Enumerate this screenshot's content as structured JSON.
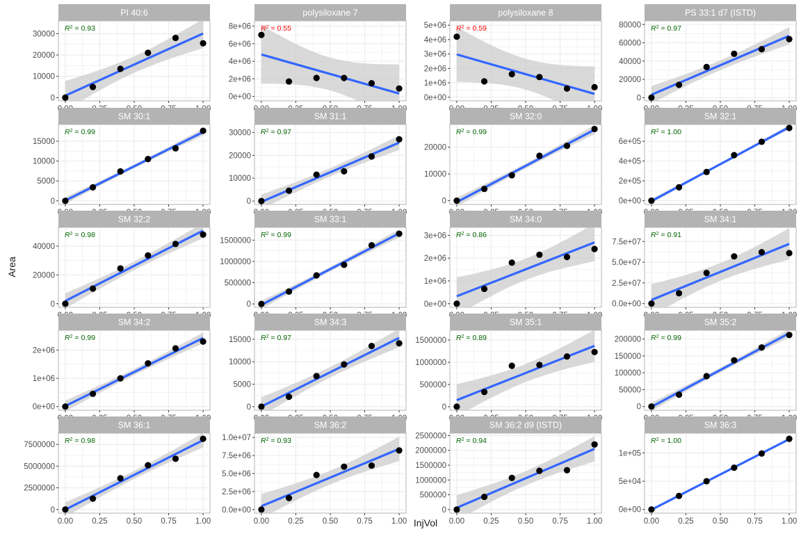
{
  "chart_data": {
    "type": "scatter",
    "layout": "facet_wrap",
    "facet_columns": 4,
    "xlabel": "InjVol",
    "ylabel": "Area",
    "x_ticks": [
      "0.00",
      "0.25",
      "0.50",
      "0.75",
      "1.00"
    ],
    "xlim": [
      -0.05,
      1.05
    ],
    "colors": {
      "strip_background": "#b3b3b3",
      "strip_text": "#ffffff",
      "grid": "#ebebeb",
      "panel_border": "#b3b3b3",
      "fit_line": "#3366ff",
      "confidence_band": "#cccccc",
      "points": "#000000",
      "r2_good": "#006400",
      "r2_bad": "#ff0000"
    },
    "grid": true,
    "annotation": "R² label per facet (green when acceptable, red when poor)",
    "panels": [
      {
        "title": "PI 40:6",
        "r2": "0.93",
        "r2_status": "good",
        "y_ticks": [
          {
            "v": 0,
            "t": "0"
          },
          {
            "v": 10000,
            "t": "10000"
          },
          {
            "v": 20000,
            "t": "20000"
          },
          {
            "v": 30000,
            "t": "30000"
          }
        ],
        "ylim": [
          -1500,
          36000
        ],
        "x": [
          0,
          0.2,
          0.4,
          0.6,
          0.8,
          1.0
        ],
        "y": [
          0,
          5000,
          13500,
          21000,
          28000,
          25500
        ]
      },
      {
        "title": "polysiloxane 7",
        "r2": "0.55",
        "r2_status": "bad",
        "y_ticks": [
          {
            "v": 0,
            "t": "0e+00"
          },
          {
            "v": 2000000,
            "t": "2e+06"
          },
          {
            "v": 4000000,
            "t": "4e+06"
          },
          {
            "v": 6000000,
            "t": "6e+06"
          },
          {
            "v": 8000000,
            "t": "8e+06"
          }
        ],
        "ylim": [
          -500000,
          8600000
        ],
        "x": [
          0,
          0.2,
          0.4,
          0.6,
          0.8,
          1.0
        ],
        "y": [
          7000000,
          1700000,
          2100000,
          2100000,
          1500000,
          900000
        ]
      },
      {
        "title": "polysiloxane 8",
        "r2": "0.59",
        "r2_status": "bad",
        "y_ticks": [
          {
            "v": 0,
            "t": "0e+00"
          },
          {
            "v": 1000000,
            "t": "1e+06"
          },
          {
            "v": 2000000,
            "t": "2e+06"
          },
          {
            "v": 3000000,
            "t": "3e+06"
          },
          {
            "v": 4000000,
            "t": "4e+06"
          },
          {
            "v": 5000000,
            "t": "5e+06"
          }
        ],
        "ylim": [
          -250000,
          5300000
        ],
        "x": [
          0,
          0.2,
          0.4,
          0.6,
          0.8,
          1.0
        ],
        "y": [
          4200000,
          1100000,
          1600000,
          1400000,
          600000,
          700000
        ]
      },
      {
        "title": "PS 33:1 d7 (ISTD)",
        "r2": "0.97",
        "r2_status": "good",
        "y_ticks": [
          {
            "v": 0,
            "t": "0"
          },
          {
            "v": 20000,
            "t": "20000"
          },
          {
            "v": 40000,
            "t": "40000"
          },
          {
            "v": 60000,
            "t": "60000"
          },
          {
            "v": 80000,
            "t": "80000"
          }
        ],
        "ylim": [
          -3500,
          84000
        ],
        "x": [
          0,
          0.2,
          0.4,
          0.6,
          0.8,
          1.0
        ],
        "y": [
          0,
          14000,
          33500,
          48000,
          53000,
          64000
        ]
      },
      {
        "title": "SM 30:1",
        "r2": "0.99",
        "r2_status": "good",
        "y_ticks": [
          {
            "v": 0,
            "t": "0"
          },
          {
            "v": 5000,
            "t": "5000"
          },
          {
            "v": 10000,
            "t": "10000"
          },
          {
            "v": 15000,
            "t": "15000"
          }
        ],
        "ylim": [
          -900,
          19200
        ],
        "x": [
          0,
          0.2,
          0.4,
          0.6,
          0.8,
          1.0
        ],
        "y": [
          0,
          3400,
          7400,
          10500,
          13200,
          17600
        ]
      },
      {
        "title": "SM 31:1",
        "r2": "0.97",
        "r2_status": "good",
        "y_ticks": [
          {
            "v": 0,
            "t": "0"
          },
          {
            "v": 10000,
            "t": "10000"
          },
          {
            "v": 20000,
            "t": "20000"
          },
          {
            "v": 30000,
            "t": "30000"
          }
        ],
        "ylim": [
          -1500,
          33500
        ],
        "x": [
          0,
          0.2,
          0.4,
          0.6,
          0.8,
          1.0
        ],
        "y": [
          0,
          4500,
          11500,
          13000,
          19500,
          27000
        ]
      },
      {
        "title": "SM 32:0",
        "r2": "0.99",
        "r2_status": "good",
        "y_ticks": [
          {
            "v": 0,
            "t": "0"
          },
          {
            "v": 10000,
            "t": "10000"
          },
          {
            "v": 20000,
            "t": "20000"
          }
        ],
        "ylim": [
          -1400,
          28500
        ],
        "x": [
          0,
          0.2,
          0.4,
          0.6,
          0.8,
          1.0
        ],
        "y": [
          0,
          4400,
          9500,
          16800,
          20500,
          26800
        ]
      },
      {
        "title": "SM 32:1",
        "r2": "1.00",
        "r2_status": "good",
        "y_ticks": [
          {
            "v": 0,
            "t": "0e+00"
          },
          {
            "v": 200000,
            "t": "2e+05"
          },
          {
            "v": 400000,
            "t": "4e+05"
          },
          {
            "v": 600000,
            "t": "6e+05"
          }
        ],
        "ylim": [
          -38000,
          770000
        ],
        "x": [
          0,
          0.2,
          0.4,
          0.6,
          0.8,
          1.0
        ],
        "y": [
          0,
          135000,
          290000,
          460000,
          595000,
          735000
        ]
      },
      {
        "title": "SM 32:2",
        "r2": "0.98",
        "r2_status": "good",
        "y_ticks": [
          {
            "v": 0,
            "t": "0"
          },
          {
            "v": 20000,
            "t": "20000"
          },
          {
            "v": 40000,
            "t": "40000"
          }
        ],
        "ylim": [
          -2500,
          53000
        ],
        "x": [
          0,
          0.2,
          0.4,
          0.6,
          0.8,
          1.0
        ],
        "y": [
          0,
          10500,
          24500,
          33500,
          41500,
          48000
        ]
      },
      {
        "title": "SM 33:1",
        "r2": "0.99",
        "r2_status": "good",
        "y_ticks": [
          {
            "v": 0,
            "t": "0"
          },
          {
            "v": 500000,
            "t": "500000"
          },
          {
            "v": 1000000,
            "t": "1000000"
          },
          {
            "v": 1500000,
            "t": "1500000"
          }
        ],
        "ylim": [
          -80000,
          1800000
        ],
        "x": [
          0,
          0.2,
          0.4,
          0.6,
          0.8,
          1.0
        ],
        "y": [
          0,
          290000,
          670000,
          920000,
          1380000,
          1650000
        ]
      },
      {
        "title": "SM 34:0",
        "r2": "0.86",
        "r2_status": "good",
        "y_ticks": [
          {
            "v": 0,
            "t": "0e+00"
          },
          {
            "v": 1000000,
            "t": "1e+06"
          },
          {
            "v": 2000000,
            "t": "2e+06"
          },
          {
            "v": 3000000,
            "t": "3e+06"
          }
        ],
        "ylim": [
          -160000,
          3350000
        ],
        "x": [
          0,
          0.2,
          0.4,
          0.6,
          0.8,
          1.0
        ],
        "y": [
          0,
          650000,
          1800000,
          2150000,
          2050000,
          2400000
        ]
      },
      {
        "title": "SM 34:1",
        "r2": "0.91",
        "r2_status": "good",
        "y_ticks": [
          {
            "v": 0,
            "t": "0.0e+00"
          },
          {
            "v": 25000000,
            "t": "2.5e+07"
          },
          {
            "v": 50000000,
            "t": "5.0e+07"
          },
          {
            "v": 75000000,
            "t": "7.5e+07"
          }
        ],
        "ylim": [
          -4500000,
          92000000
        ],
        "x": [
          0,
          0.2,
          0.4,
          0.6,
          0.8,
          1.0
        ],
        "y": [
          0,
          12500000,
          37000000,
          57000000,
          62000000,
          61000000
        ]
      },
      {
        "title": "SM 34:2",
        "r2": "0.99",
        "r2_status": "good",
        "y_ticks": [
          {
            "v": 0,
            "t": "0e+00"
          },
          {
            "v": 1000000,
            "t": "1e+06"
          },
          {
            "v": 2000000,
            "t": "2e+06"
          }
        ],
        "ylim": [
          -130000,
          2700000
        ],
        "x": [
          0,
          0.2,
          0.4,
          0.6,
          0.8,
          1.0
        ],
        "y": [
          0,
          450000,
          1000000,
          1530000,
          2060000,
          2300000
        ]
      },
      {
        "title": "SM 34:3",
        "r2": "0.97",
        "r2_status": "good",
        "y_ticks": [
          {
            "v": 0,
            "t": "0"
          },
          {
            "v": 5000,
            "t": "5000"
          },
          {
            "v": 10000,
            "t": "10000"
          },
          {
            "v": 15000,
            "t": "15000"
          }
        ],
        "ylim": [
          -800,
          17000
        ],
        "x": [
          0,
          0.2,
          0.4,
          0.6,
          0.8,
          1.0
        ],
        "y": [
          0,
          2200,
          6800,
          9400,
          13500,
          14100
        ]
      },
      {
        "title": "SM 35:1",
        "r2": "0.89",
        "r2_status": "good",
        "y_ticks": [
          {
            "v": 0,
            "t": "0"
          },
          {
            "v": 500000,
            "t": "500000"
          },
          {
            "v": 1000000,
            "t": "1000000"
          },
          {
            "v": 1500000,
            "t": "1500000"
          }
        ],
        "ylim": [
          -80000,
          1720000
        ],
        "x": [
          0,
          0.2,
          0.4,
          0.6,
          0.8,
          1.0
        ],
        "y": [
          0,
          330000,
          920000,
          940000,
          1130000,
          1230000
        ]
      },
      {
        "title": "SM 35:2",
        "r2": "0.99",
        "r2_status": "good",
        "y_ticks": [
          {
            "v": 0,
            "t": "0"
          },
          {
            "v": 50000,
            "t": "50000"
          },
          {
            "v": 100000,
            "t": "100000"
          },
          {
            "v": 150000,
            "t": "150000"
          },
          {
            "v": 200000,
            "t": "200000"
          }
        ],
        "ylim": [
          -11000,
          226000
        ],
        "x": [
          0,
          0.2,
          0.4,
          0.6,
          0.8,
          1.0
        ],
        "y": [
          0,
          35000,
          90000,
          137000,
          175000,
          212000
        ]
      },
      {
        "title": "SM 36:1",
        "r2": "0.98",
        "r2_status": "good",
        "y_ticks": [
          {
            "v": 0,
            "t": "0"
          },
          {
            "v": 2500000,
            "t": "2500000"
          },
          {
            "v": 5000000,
            "t": "5000000"
          },
          {
            "v": 7500000,
            "t": "7500000"
          }
        ],
        "ylim": [
          -420000,
          8800000
        ],
        "x": [
          0,
          0.2,
          0.4,
          0.6,
          0.8,
          1.0
        ],
        "y": [
          0,
          1250000,
          3600000,
          5100000,
          5850000,
          8150000
        ]
      },
      {
        "title": "SM 36:2",
        "r2": "0.93",
        "r2_status": "good",
        "y_ticks": [
          {
            "v": 0,
            "t": "0.0e+00"
          },
          {
            "v": 2500000,
            "t": "2.5e+06"
          },
          {
            "v": 5000000,
            "t": "5.0e+06"
          },
          {
            "v": 7500000,
            "t": "7.5e+06"
          },
          {
            "v": 10000000,
            "t": "1.0e+07"
          }
        ],
        "ylim": [
          -500000,
          10600000
        ],
        "x": [
          0,
          0.2,
          0.4,
          0.6,
          0.8,
          1.0
        ],
        "y": [
          0,
          1600000,
          4800000,
          5950000,
          6100000,
          8200000
        ]
      },
      {
        "title": "SM 36:2 d9 (ISTD)",
        "r2": "0.94",
        "r2_status": "good",
        "y_ticks": [
          {
            "v": 0,
            "t": "0"
          },
          {
            "v": 500000,
            "t": "500000"
          },
          {
            "v": 1000000,
            "t": "1000000"
          },
          {
            "v": 1500000,
            "t": "1500000"
          },
          {
            "v": 2000000,
            "t": "2000000"
          },
          {
            "v": 2500000,
            "t": "2500000"
          }
        ],
        "ylim": [
          -120000,
          2580000
        ],
        "x": [
          0,
          0.2,
          0.4,
          0.6,
          0.8,
          1.0
        ],
        "y": [
          0,
          430000,
          1070000,
          1310000,
          1330000,
          2200000
        ]
      },
      {
        "title": "SM 36:3",
        "r2": "1.00",
        "r2_status": "good",
        "y_ticks": [
          {
            "v": 0,
            "t": "0e+00"
          },
          {
            "v": 50000,
            "t": "5e+04"
          },
          {
            "v": 100000,
            "t": "1e+05"
          }
        ],
        "ylim": [
          -6500,
          135000
        ],
        "x": [
          0,
          0.2,
          0.4,
          0.6,
          0.8,
          1.0
        ],
        "y": [
          0,
          24000,
          50000,
          74000,
          99000,
          125000
        ]
      }
    ]
  }
}
